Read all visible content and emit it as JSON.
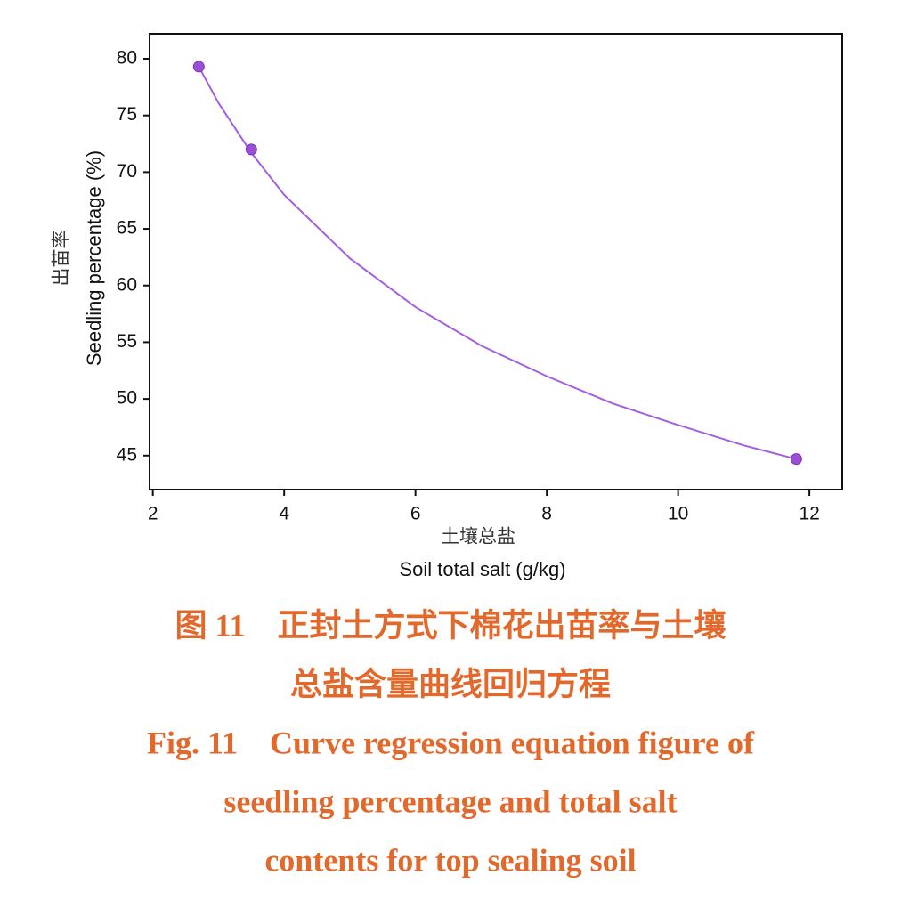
{
  "chart_data": {
    "type": "scatter",
    "x_label_cn": "土壤总盐",
    "x_label": "Soil total salt (g/kg)",
    "y_label_cn": "出苗率",
    "y_label": "Seedling percentage (%)",
    "x": [
      2.7,
      3.5,
      11.8
    ],
    "values": [
      79.3,
      72.0,
      44.7
    ],
    "color": "#9b4fd6",
    "curve": {
      "x": [
        2.7,
        3,
        3.5,
        4,
        5,
        6,
        7,
        8,
        9,
        10,
        11,
        11.8
      ],
      "values": [
        79.3,
        76.1,
        71.7,
        68.0,
        62.4,
        58.1,
        54.7,
        52.0,
        49.6,
        47.7,
        45.9,
        44.7
      ],
      "color": "#a35fe0"
    },
    "xlim": [
      1.95,
      12.5
    ],
    "xticks": [
      2,
      4,
      6,
      8,
      10,
      12
    ],
    "ylim": [
      42,
      82.2
    ],
    "yticks": [
      45,
      50,
      55,
      60,
      65,
      70,
      75,
      80
    ],
    "grid": false
  },
  "caption_cn": [
    "图 11　正封土方式下棉花出苗率与土壤",
    "总盐含量曲线回归方程"
  ],
  "caption_en": [
    "Fig. 11　Curve regression equation figure of",
    "seedling percentage and total salt",
    "contents for top sealing soil"
  ],
  "caption_color": "#e2692b"
}
